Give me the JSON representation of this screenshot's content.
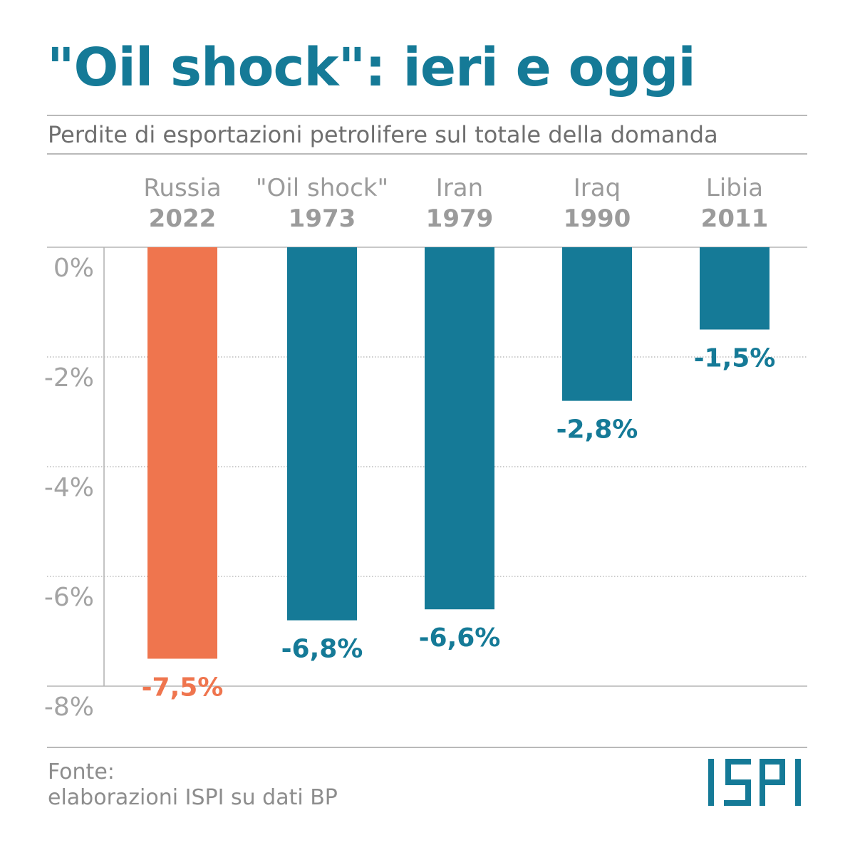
{
  "header": {
    "title": "\"Oil shock\": ieri e oggi",
    "subtitle": "Perdite di esportazioni petrolifere sul totale della domanda"
  },
  "footer": {
    "source_label": "Fonte:",
    "source_text": "elaborazioni ISPI su dati BP",
    "logo_text": "ISPI"
  },
  "colors": {
    "accent": "#157a97",
    "highlight": "#ef754e",
    "axis_text": "#a3a3a3",
    "label_text": "#9b9b9b"
  },
  "chart_data": {
    "type": "bar",
    "categories": [
      "Russia",
      "\"Oil shock\"",
      "Iran",
      "Iraq",
      "Libia"
    ],
    "category_years": [
      "2022",
      "1973",
      "1979",
      "1990",
      "2011"
    ],
    "values": [
      -7.5,
      -6.8,
      -6.6,
      -2.8,
      -1.5
    ],
    "value_labels": [
      "-7,5%",
      "-6,8%",
      "-6,6%",
      "-2,8%",
      "-1,5%"
    ],
    "highlight_index": 0,
    "yticks": [
      0,
      -2,
      -4,
      -6,
      -8
    ],
    "ytick_labels": [
      "0%",
      "-2%",
      "-4%",
      "-6%",
      "-8%"
    ],
    "ylim": [
      -8,
      0
    ],
    "grid": true,
    "xlabel": "",
    "ylabel": ""
  }
}
